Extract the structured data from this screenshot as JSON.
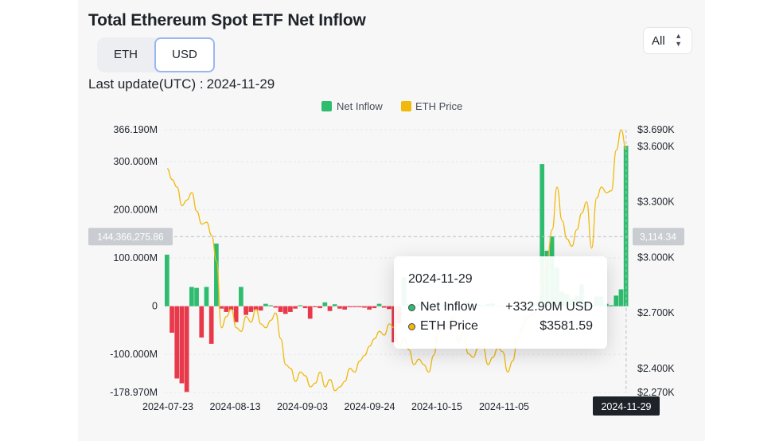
{
  "title": "Total Ethereum Spot ETF Net Inflow",
  "unit_toggle": {
    "options": [
      "ETH",
      "USD"
    ],
    "selected": "USD"
  },
  "range_select": {
    "value": "All"
  },
  "last_update": {
    "label": "Last update(UTC) :",
    "date": "2024-11-29"
  },
  "colors": {
    "inflow": "#2ebd6f",
    "outflow": "#e8394a",
    "price": "#f0b90b",
    "tooltip_inflow_dot": "#2ebd6f",
    "tooltip_price_dot": "#f0b90b"
  },
  "crosshair": {
    "left_value": "144,366,275.86",
    "right_value": "3,114.34",
    "date": "2024-11-29"
  },
  "tooltip": {
    "date": "2024-11-29",
    "rows": [
      {
        "label": "Net Inflow",
        "value": "+332.90M USD"
      },
      {
        "label": "ETH Price",
        "value": "$3581.59"
      }
    ]
  },
  "chart_data": {
    "type": "bar",
    "title": "",
    "legend": {
      "position": "top-center",
      "entries": [
        "Net Inflow",
        "ETH Price"
      ]
    },
    "xlabel": "",
    "ylabel": "",
    "x_tick_labels": [
      "2024-07-23",
      "2024-08-13",
      "2024-09-03",
      "2024-09-24",
      "2024-10-15",
      "2024-11-05",
      "2024-11-29"
    ],
    "y_left": {
      "ylim": [
        -178970000,
        366190000
      ],
      "tick_labels": [
        "366.190M",
        "300.000M",
        "200.000M",
        "100.000M",
        "0",
        "-100.000M",
        "-178.970M"
      ],
      "tick_values": [
        366190000,
        300000000,
        200000000,
        100000000,
        0,
        -100000000,
        -178970000
      ]
    },
    "y_right": {
      "ylim": [
        2270,
        3690
      ],
      "tick_labels": [
        "$3.690K",
        "$3.600K",
        "$3.300K",
        "$3.000K",
        "$2.700K",
        "$2.400K",
        "$2.270K"
      ],
      "tick_values": [
        3690,
        3600,
        3300,
        3000,
        2700,
        2400,
        2270
      ]
    },
    "grid": true,
    "series": [
      {
        "name": "Net Inflow",
        "values": [
          107,
          -55,
          -150,
          -160,
          -178,
          40,
          38,
          -65,
          40,
          -78,
          130,
          -5,
          -12,
          -8,
          -33,
          40,
          -18,
          -12,
          -8,
          -9,
          5,
          2,
          -3,
          -12,
          -16,
          -12,
          -5,
          2,
          -4,
          -26,
          -2,
          -4,
          8,
          -10,
          4,
          -5,
          -7,
          -2,
          -2,
          -2,
          -3,
          -7,
          -4,
          5,
          -3,
          -6,
          -75,
          -35,
          60,
          5,
          1,
          6,
          2,
          3,
          4,
          3,
          3,
          3,
          2,
          1,
          3,
          10,
          2,
          4,
          2,
          5,
          6,
          1,
          1,
          1,
          2,
          2,
          3,
          3,
          5,
          8,
          295,
          115,
          145,
          80,
          30,
          25,
          15,
          22,
          45,
          10,
          3,
          20,
          20,
          5,
          2,
          22,
          35,
          332.9
        ]
      },
      {
        "name": "ETH Price",
        "values": [
          3480,
          3420,
          3380,
          3280,
          3310,
          3350,
          3250,
          3180,
          3190,
          3120,
          2980,
          2620,
          2680,
          2720,
          2620,
          2600,
          2680,
          2650,
          2720,
          2640,
          2620,
          2660,
          2700,
          2560,
          2420,
          2400,
          2330,
          2380,
          2360,
          2300,
          2320,
          2380,
          2300,
          2340,
          2280,
          2300,
          2330,
          2400,
          2380,
          2440,
          2470,
          2520,
          2560,
          2600,
          2580,
          2640,
          2620,
          2520,
          2560,
          2500,
          2420,
          2450,
          2420,
          2380,
          2470,
          2600,
          2640,
          2620,
          2680,
          2540,
          2600,
          2480,
          2460,
          2510,
          2520,
          2420,
          2460,
          2510,
          2490,
          2380,
          2440,
          2560,
          2620,
          2680,
          2690,
          2720,
          2860,
          3000,
          3150,
          3380,
          3200,
          3100,
          3060,
          3150,
          3240,
          3300,
          3050,
          3320,
          3380,
          3350,
          3360,
          3580,
          3690,
          3581.59
        ]
      }
    ]
  }
}
